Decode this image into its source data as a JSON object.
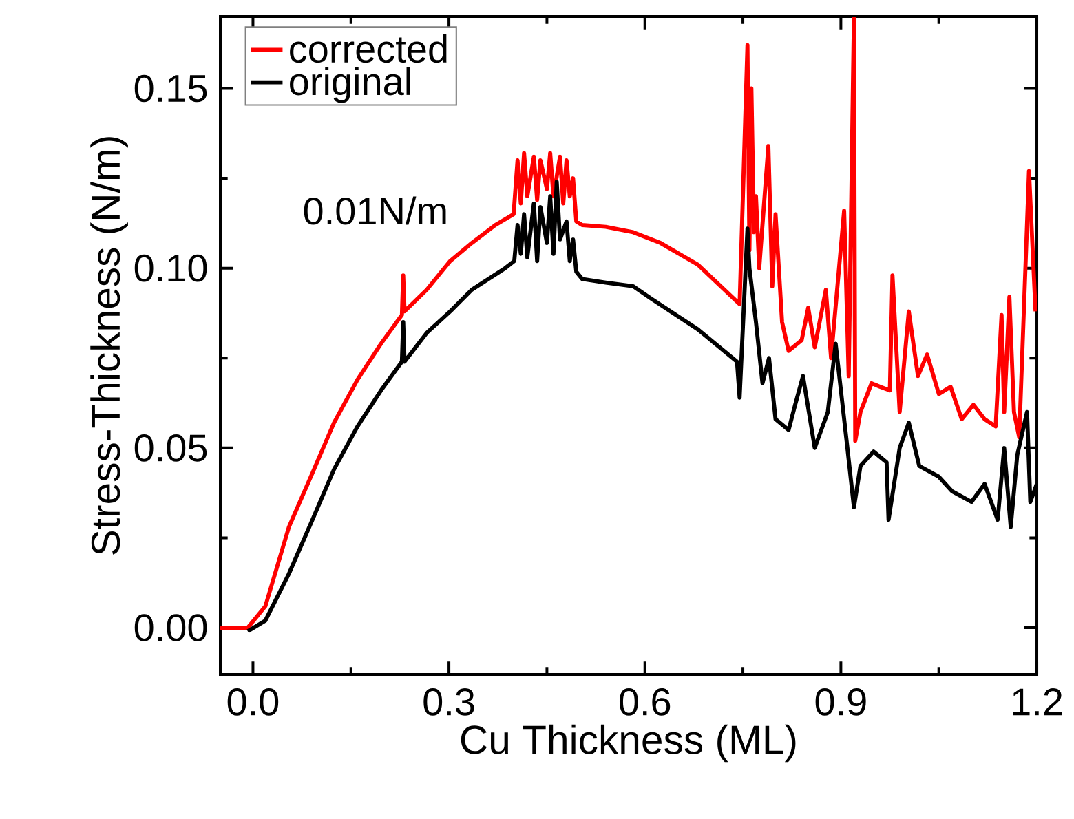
{
  "chart_data": {
    "type": "line",
    "xlabel": "Cu Thickness (ML)",
    "ylabel": "Stress-Thickness (N/m)",
    "xlim": [
      -0.05,
      1.2
    ],
    "ylim": [
      -0.013,
      0.17
    ],
    "xticks": [
      {
        "value": 0,
        "label": "0.0"
      },
      {
        "value": 0.3,
        "label": "0.3"
      },
      {
        "value": 0.6,
        "label": "0.6"
      },
      {
        "value": 0.9,
        "label": "0.9"
      },
      {
        "value": 1.2,
        "label": "1.2"
      }
    ],
    "yticks": [
      {
        "value": 0,
        "label": "0.00"
      },
      {
        "value": 0.05,
        "label": "0.05"
      },
      {
        "value": 0.1,
        "label": "0.10"
      },
      {
        "value": 0.15,
        "label": "0.15"
      }
    ],
    "legend": "top left",
    "grid": false,
    "marker": "none",
    "line_style": "solid",
    "annotations": [
      "0.01N/m"
    ],
    "series": [
      {
        "name": "corrected",
        "color": "#ff0000",
        "x": [
          -0.05,
          -0.008,
          0.019,
          0.055,
          0.091,
          0.124,
          0.16,
          0.196,
          0.228,
          0.23,
          0.232,
          0.266,
          0.302,
          0.335,
          0.371,
          0.399,
          0.405,
          0.41,
          0.415,
          0.42,
          0.43,
          0.435,
          0.44,
          0.45,
          0.455,
          0.46,
          0.47,
          0.475,
          0.48,
          0.485,
          0.49,
          0.495,
          0.504,
          0.54,
          0.582,
          0.624,
          0.681,
          0.745,
          0.757,
          0.76,
          0.763,
          0.767,
          0.77,
          0.775,
          0.789,
          0.795,
          0.8,
          0.81,
          0.82,
          0.84,
          0.85,
          0.86,
          0.877,
          0.885,
          0.905,
          0.912,
          0.92,
          0.922,
          0.93,
          0.947,
          0.96,
          0.975,
          0.979,
          0.99,
          1.004,
          1.018,
          1.032,
          1.05,
          1.068,
          1.085,
          1.103,
          1.12,
          1.137,
          1.146,
          1.15,
          1.158,
          1.165,
          1.173,
          1.188,
          1.198
        ],
        "values": [
          0.0,
          0.0,
          0.006,
          0.028,
          0.043,
          0.057,
          0.069,
          0.079,
          0.087,
          0.098,
          0.088,
          0.094,
          0.102,
          0.107,
          0.112,
          0.115,
          0.13,
          0.118,
          0.132,
          0.12,
          0.131,
          0.119,
          0.13,
          0.122,
          0.132,
          0.12,
          0.131,
          0.118,
          0.13,
          0.12,
          0.125,
          0.113,
          0.112,
          0.1115,
          0.11,
          0.107,
          0.101,
          0.09,
          0.162,
          0.105,
          0.15,
          0.11,
          0.12,
          0.1,
          0.134,
          0.095,
          0.115,
          0.085,
          0.077,
          0.08,
          0.089,
          0.078,
          0.094,
          0.075,
          0.116,
          0.07,
          0.17,
          0.052,
          0.06,
          0.068,
          0.067,
          0.066,
          0.098,
          0.06,
          0.088,
          0.07,
          0.076,
          0.065,
          0.067,
          0.058,
          0.062,
          0.058,
          0.056,
          0.087,
          0.06,
          0.092,
          0.06,
          0.053,
          0.127,
          0.088
        ]
      },
      {
        "name": "original",
        "color": "#000000",
        "x": [
          -0.008,
          0.019,
          0.055,
          0.091,
          0.124,
          0.16,
          0.196,
          0.228,
          0.23,
          0.232,
          0.266,
          0.302,
          0.335,
          0.386,
          0.4,
          0.405,
          0.41,
          0.415,
          0.42,
          0.43,
          0.435,
          0.44,
          0.45,
          0.455,
          0.46,
          0.465,
          0.47,
          0.48,
          0.485,
          0.49,
          0.495,
          0.504,
          0.54,
          0.582,
          0.61,
          0.681,
          0.741,
          0.745,
          0.757,
          0.76,
          0.77,
          0.78,
          0.79,
          0.8,
          0.82,
          0.83,
          0.842,
          0.86,
          0.88,
          0.892,
          0.91,
          0.92,
          0.93,
          0.95,
          0.97,
          0.973,
          0.99,
          1.004,
          1.02,
          1.05,
          1.07,
          1.1,
          1.12,
          1.14,
          1.15,
          1.16,
          1.17,
          1.185,
          1.19,
          1.2
        ],
        "values": [
          -0.001,
          0.002,
          0.015,
          0.03,
          0.044,
          0.056,
          0.066,
          0.074,
          0.085,
          0.074,
          0.082,
          0.088,
          0.094,
          0.1,
          0.102,
          0.112,
          0.104,
          0.115,
          0.103,
          0.118,
          0.102,
          0.117,
          0.107,
          0.12,
          0.104,
          0.124,
          0.108,
          0.113,
          0.102,
          0.108,
          0.099,
          0.097,
          0.096,
          0.095,
          0.0915,
          0.083,
          0.074,
          0.064,
          0.111,
          0.1,
          0.085,
          0.068,
          0.075,
          0.058,
          0.055,
          0.062,
          0.07,
          0.05,
          0.06,
          0.079,
          0.05,
          0.0335,
          0.045,
          0.049,
          0.046,
          0.03,
          0.05,
          0.057,
          0.045,
          0.042,
          0.038,
          0.035,
          0.04,
          0.03,
          0.05,
          0.028,
          0.048,
          0.06,
          0.035,
          0.04
        ]
      }
    ]
  }
}
